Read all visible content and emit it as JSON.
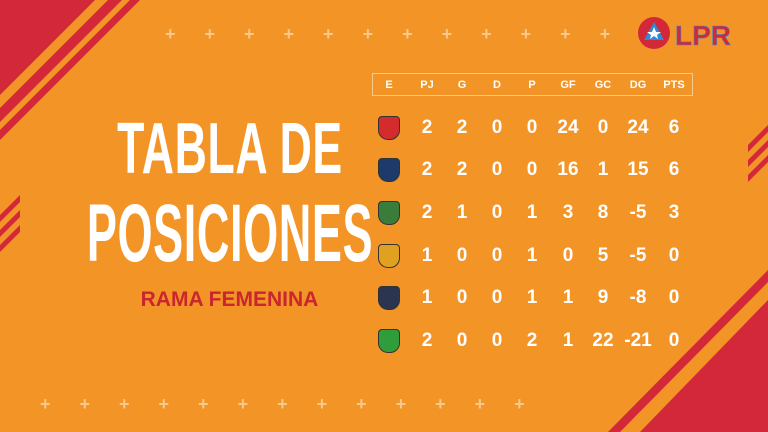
{
  "logo": {
    "text": "LPR",
    "colors": {
      "red": "#D3283A",
      "blue": "#2E8BD8"
    }
  },
  "title": {
    "line1": "TABLA DE",
    "line2": "POSICIONES",
    "subtitle": "RAMA FEMENINA"
  },
  "colors": {
    "background": "#F39427",
    "accent_red": "#C9262F",
    "text": "#FFFFFF"
  },
  "table": {
    "columns": [
      "E",
      "PJ",
      "G",
      "D",
      "P",
      "GF",
      "GC",
      "DG",
      "PTS"
    ],
    "rows": [
      {
        "crest": "team-crest-1",
        "crest_color": "#D42C2C",
        "values": [
          "2",
          "2",
          "0",
          "0",
          "24",
          "0",
          "24",
          "6"
        ]
      },
      {
        "crest": "team-crest-surf",
        "crest_color": "#1D3A6B",
        "values": [
          "2",
          "2",
          "0",
          "0",
          "16",
          "1",
          "15",
          "6"
        ]
      },
      {
        "crest": "team-crest-3",
        "crest_color": "#3A7D3A",
        "values": [
          "2",
          "1",
          "0",
          "1",
          "3",
          "8",
          "-5",
          "3"
        ]
      },
      {
        "crest": "team-crest-4",
        "crest_color": "#E0A020",
        "values": [
          "1",
          "0",
          "0",
          "1",
          "0",
          "5",
          "-5",
          "0"
        ]
      },
      {
        "crest": "team-crest-elite",
        "crest_color": "#2B3550",
        "values": [
          "1",
          "0",
          "0",
          "1",
          "1",
          "9",
          "-8",
          "0"
        ]
      },
      {
        "crest": "team-crest-6",
        "crest_color": "#2F9E3A",
        "values": [
          "2",
          "0",
          "0",
          "2",
          "1",
          "22",
          "-21",
          "0"
        ]
      }
    ]
  }
}
